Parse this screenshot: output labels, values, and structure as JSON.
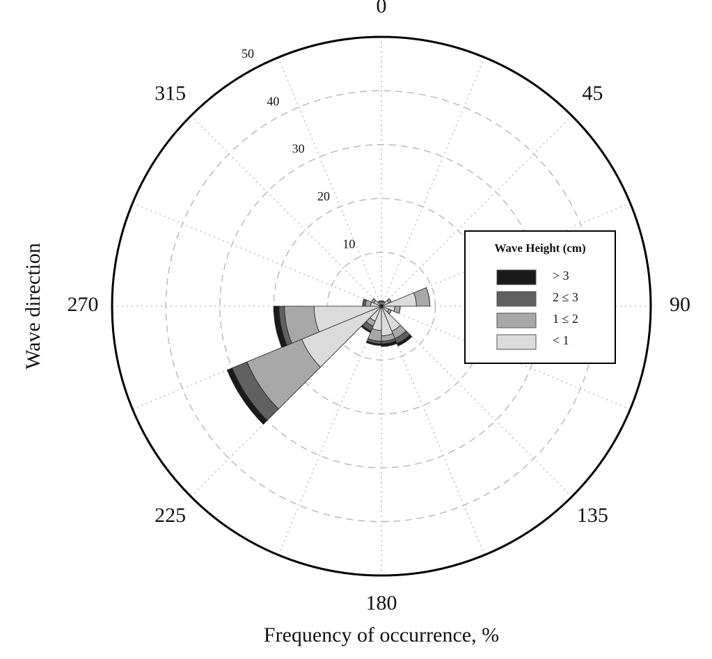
{
  "chart_data": {
    "type": "polar-stacked-bar",
    "xlabel": "Frequency of occurrence, %",
    "ylabel": "Wave direction",
    "directions": [
      0,
      22.5,
      45,
      67.5,
      90,
      112.5,
      135,
      157.5,
      180,
      202.5,
      225,
      247.5,
      270,
      292.5,
      315,
      337.5
    ],
    "thetaticks": [
      0,
      45,
      90,
      135,
      180,
      225,
      270,
      315
    ],
    "rlim": [
      0,
      50
    ],
    "rticks": [
      10,
      20,
      30,
      40,
      50
    ],
    "legend_title": "Wave Height (cm)",
    "legend_position": "right",
    "series": [
      {
        "name": "< 1",
        "color": "#dcdcdc",
        "values": [
          0.8,
          0.8,
          1.5,
          6.5,
          2.5,
          1.5,
          5,
          5.5,
          4.5,
          3,
          16,
          12.5,
          2,
          1.5,
          0.8,
          0.8
        ]
      },
      {
        "name": "1 ≤ 2",
        "color": "#a8a8a8",
        "values": [
          0.2,
          0.2,
          0.5,
          2.5,
          1,
          0.5,
          1.5,
          1,
          2,
          1,
          11,
          5.5,
          1,
          0.5,
          0.2,
          0.2
        ]
      },
      {
        "name": "2 ≤ 3",
        "color": "#606060",
        "values": [
          0,
          0,
          0,
          0,
          0,
          0,
          1,
          0.5,
          0.5,
          1,
          3,
          1,
          0.5,
          0,
          0,
          0
        ]
      },
      {
        "name": "> 3",
        "color": "#1a1a1a",
        "values": [
          0,
          0,
          0,
          0,
          0,
          0,
          0.5,
          0.5,
          0.3,
          0.3,
          1,
          1,
          0,
          0,
          0,
          0
        ]
      }
    ]
  }
}
